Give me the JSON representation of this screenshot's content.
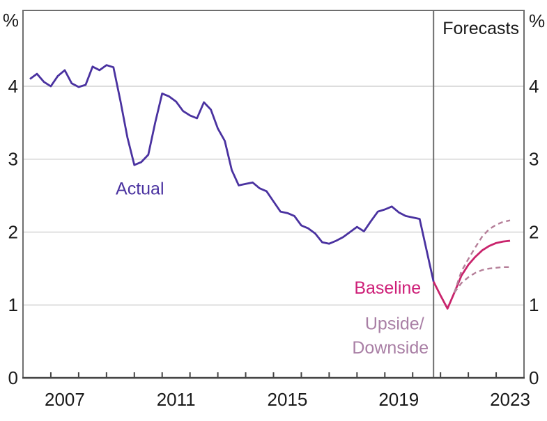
{
  "colors": {
    "actual": "#4a32a0",
    "baseline": "#c9246c",
    "scenario_dashed": "#b57f99",
    "baseline_label": "#ce1f78",
    "scenario_label": "#a97fa5",
    "text": "#1a1a1a",
    "frame": "#6e6e6e",
    "axis": "#444444",
    "gridline": "#cbcbcb",
    "background": "#ffffff"
  },
  "chart_data": {
    "type": "line",
    "unit": "%",
    "grid": "horizontal-on",
    "legend_position": "inline-annotations",
    "x_axis": {
      "range": [
        2006,
        2024
      ],
      "tick_years": [
        2007,
        2008,
        2009,
        2010,
        2011,
        2012,
        2013,
        2014,
        2015,
        2016,
        2017,
        2018,
        2019,
        2020,
        2021,
        2022,
        2023
      ],
      "labels": [
        {
          "text": "2007",
          "t": 2007.5
        },
        {
          "text": "2011",
          "t": 2011.5
        },
        {
          "text": "2015",
          "t": 2015.5
        },
        {
          "text": "2019",
          "t": 2019.5
        },
        {
          "text": "2023",
          "t": 2023.5
        }
      ]
    },
    "y_axis": {
      "range": [
        0,
        5.04
      ],
      "ticks": [
        0,
        1,
        2,
        3,
        4
      ],
      "unit": "%",
      "sides": "both"
    },
    "forecast_divider": {
      "t": 2020.75,
      "label": "Forecasts"
    },
    "series": [
      {
        "name": "Actual",
        "style": "solid",
        "color": "#4a32a0",
        "points": [
          [
            2006.25,
            4.1
          ],
          [
            2006.5,
            4.17
          ],
          [
            2006.75,
            4.06
          ],
          [
            2007.0,
            4.0
          ],
          [
            2007.25,
            4.14
          ],
          [
            2007.5,
            4.22
          ],
          [
            2007.75,
            4.04
          ],
          [
            2008.0,
            3.99
          ],
          [
            2008.25,
            4.02
          ],
          [
            2008.5,
            4.27
          ],
          [
            2008.75,
            4.22
          ],
          [
            2009.0,
            4.29
          ],
          [
            2009.25,
            4.26
          ],
          [
            2009.5,
            3.8
          ],
          [
            2009.75,
            3.3
          ],
          [
            2010.0,
            2.92
          ],
          [
            2010.25,
            2.96
          ],
          [
            2010.5,
            3.06
          ],
          [
            2010.75,
            3.5
          ],
          [
            2011.0,
            3.9
          ],
          [
            2011.25,
            3.86
          ],
          [
            2011.5,
            3.79
          ],
          [
            2011.75,
            3.66
          ],
          [
            2012.0,
            3.6
          ],
          [
            2012.25,
            3.56
          ],
          [
            2012.5,
            3.78
          ],
          [
            2012.75,
            3.68
          ],
          [
            2013.0,
            3.42
          ],
          [
            2013.25,
            3.25
          ],
          [
            2013.5,
            2.85
          ],
          [
            2013.75,
            2.64
          ],
          [
            2014.0,
            2.66
          ],
          [
            2014.25,
            2.68
          ],
          [
            2014.5,
            2.6
          ],
          [
            2014.75,
            2.56
          ],
          [
            2015.0,
            2.42
          ],
          [
            2015.25,
            2.28
          ],
          [
            2015.5,
            2.26
          ],
          [
            2015.75,
            2.22
          ],
          [
            2016.0,
            2.09
          ],
          [
            2016.25,
            2.05
          ],
          [
            2016.5,
            1.98
          ],
          [
            2016.75,
            1.86
          ],
          [
            2017.0,
            1.84
          ],
          [
            2017.25,
            1.88
          ],
          [
            2017.5,
            1.93
          ],
          [
            2017.75,
            2.0
          ],
          [
            2018.0,
            2.07
          ],
          [
            2018.25,
            2.01
          ],
          [
            2018.5,
            2.15
          ],
          [
            2018.75,
            2.28
          ],
          [
            2019.0,
            2.31
          ],
          [
            2019.25,
            2.35
          ],
          [
            2019.5,
            2.27
          ],
          [
            2019.75,
            2.22
          ],
          [
            2020.0,
            2.2
          ],
          [
            2020.25,
            2.18
          ],
          [
            2020.5,
            1.75
          ],
          [
            2020.75,
            1.32
          ]
        ]
      },
      {
        "name": "Baseline",
        "style": "solid",
        "color": "#c9246c",
        "points": [
          [
            2020.75,
            1.32
          ],
          [
            2021.0,
            1.13
          ],
          [
            2021.25,
            0.95
          ],
          [
            2021.5,
            1.17
          ],
          [
            2021.75,
            1.4
          ],
          [
            2022.0,
            1.55
          ],
          [
            2022.25,
            1.66
          ],
          [
            2022.5,
            1.75
          ],
          [
            2022.75,
            1.81
          ],
          [
            2023.0,
            1.85
          ],
          [
            2023.25,
            1.87
          ],
          [
            2023.5,
            1.88
          ]
        ]
      },
      {
        "name": "Upside",
        "style": "dashed",
        "color": "#b57f99",
        "points": [
          [
            2021.5,
            1.17
          ],
          [
            2021.75,
            1.46
          ],
          [
            2022.0,
            1.63
          ],
          [
            2022.25,
            1.79
          ],
          [
            2022.5,
            1.94
          ],
          [
            2022.75,
            2.04
          ],
          [
            2023.0,
            2.1
          ],
          [
            2023.25,
            2.14
          ],
          [
            2023.5,
            2.16
          ]
        ]
      },
      {
        "name": "Downside",
        "style": "dashed",
        "color": "#b57f99",
        "points": [
          [
            2021.5,
            1.17
          ],
          [
            2021.75,
            1.3
          ],
          [
            2022.0,
            1.38
          ],
          [
            2022.25,
            1.44
          ],
          [
            2022.5,
            1.48
          ],
          [
            2022.75,
            1.5
          ],
          [
            2023.0,
            1.51
          ],
          [
            2023.25,
            1.52
          ],
          [
            2023.5,
            1.52
          ]
        ]
      }
    ],
    "annotations": [
      {
        "text": "Actual",
        "t": 2010.2,
        "v": 2.6,
        "color": "#4a32a0",
        "size": 25
      },
      {
        "text": "Baseline",
        "t": 2019.1,
        "v": 1.24,
        "color": "#ce1f78",
        "size": 25
      },
      {
        "text": "Upside/",
        "t": 2019.35,
        "v": 0.75,
        "color": "#a97fa5",
        "size": 25
      },
      {
        "text": "Downside",
        "t": 2019.2,
        "v": 0.42,
        "color": "#a97fa5",
        "size": 25
      },
      {
        "text": "Forecasts",
        "t": 2022.45,
        "v": 4.8,
        "color": "#1a1a1a",
        "size": 25
      }
    ]
  }
}
